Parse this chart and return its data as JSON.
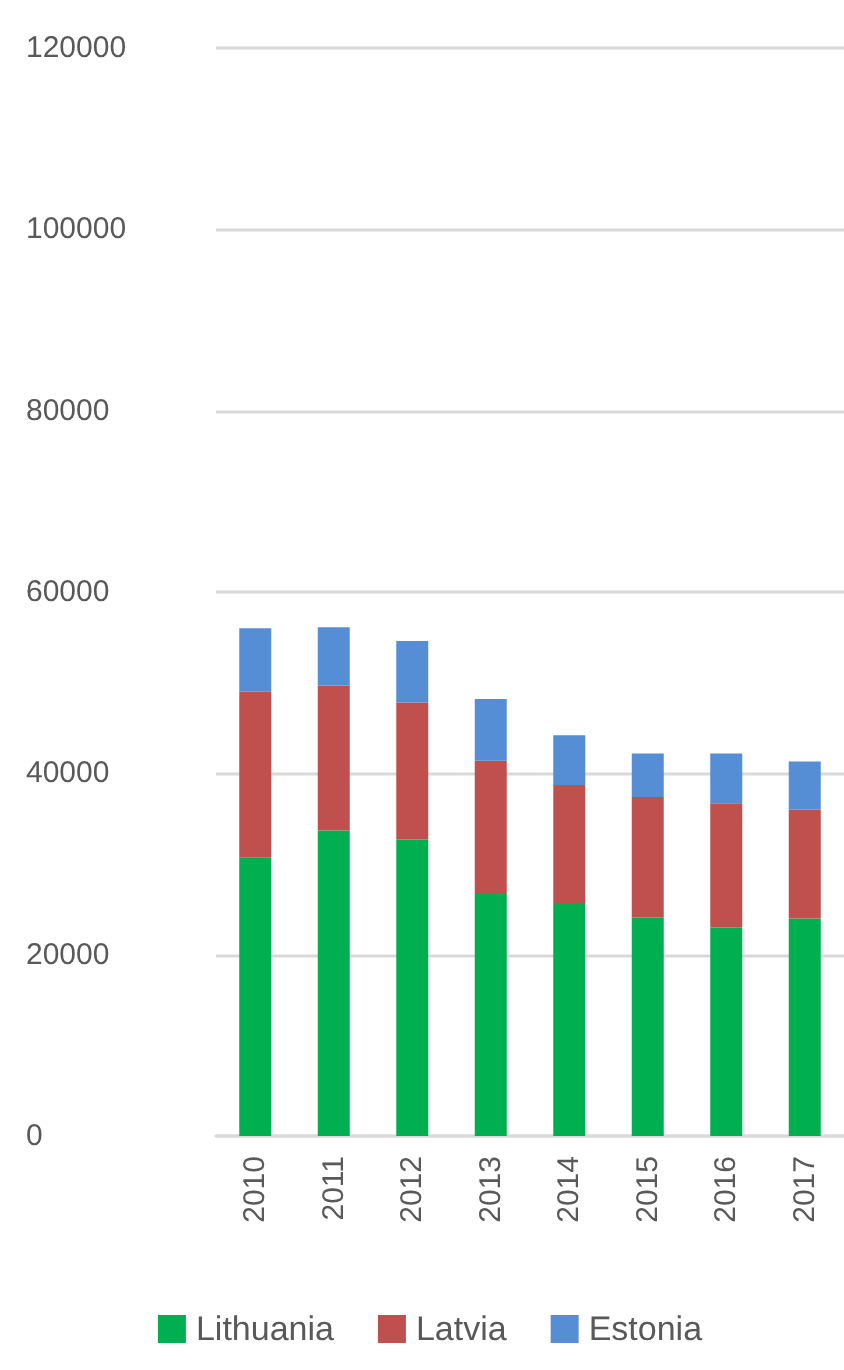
{
  "chart_data": {
    "type": "bar",
    "stacked": true,
    "categories": [
      "2010",
      "2011",
      "2012",
      "2013",
      "2014",
      "2015",
      "2016",
      "2017"
    ],
    "series": [
      {
        "name": "Lithuania",
        "color": "#00b050",
        "values": [
          30700,
          33700,
          32700,
          26700,
          25600,
          24100,
          23000,
          24000
        ]
      },
      {
        "name": "Latvia",
        "color": "#c0504d",
        "values": [
          18300,
          16000,
          15100,
          14700,
          13100,
          13300,
          13700,
          12000
        ]
      },
      {
        "name": "Estonia",
        "color": "#558ed5",
        "values": [
          7000,
          6400,
          6800,
          6800,
          5500,
          4800,
          5500,
          5300
        ]
      }
    ],
    "ylim": [
      0,
      120000
    ],
    "yticks": [
      0,
      20000,
      40000,
      60000,
      80000,
      100000,
      120000
    ],
    "grid": "y",
    "legend": "bottom"
  }
}
